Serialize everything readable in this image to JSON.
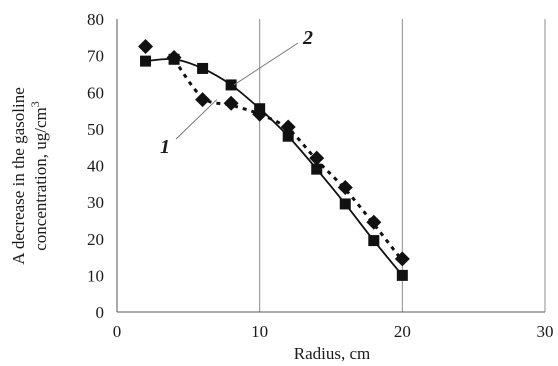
{
  "chart_data": {
    "type": "scatter",
    "xlabel": "Radius, cm",
    "ylabel_line1": "A decrease in the gasoline",
    "ylabel_line2": "concentration, ug/cm",
    "ylabel_sup": "3",
    "xlim": [
      0,
      30
    ],
    "ylim": [
      0,
      80
    ],
    "x_ticks": [
      0,
      10,
      20,
      30
    ],
    "y_ticks": [
      0,
      10,
      20,
      30,
      40,
      50,
      60,
      70,
      80
    ],
    "grid": "vertical only",
    "series": [
      {
        "name": "1",
        "marker": "diamond",
        "line": "dotted",
        "color": "#111111",
        "x": [
          2,
          4,
          6,
          8,
          10,
          12,
          14,
          16,
          18,
          20
        ],
        "values": [
          72.5,
          69.5,
          58,
          57,
          54,
          50.5,
          42,
          34,
          24.5,
          14.5
        ]
      },
      {
        "name": "2",
        "marker": "square",
        "line": "solid",
        "color": "#111111",
        "x": [
          2,
          4,
          6,
          8,
          10,
          12,
          14,
          16,
          18,
          20
        ],
        "values": [
          68.5,
          69,
          66.5,
          62,
          55.5,
          48,
          39,
          29.5,
          19.5,
          10
        ]
      }
    ]
  }
}
